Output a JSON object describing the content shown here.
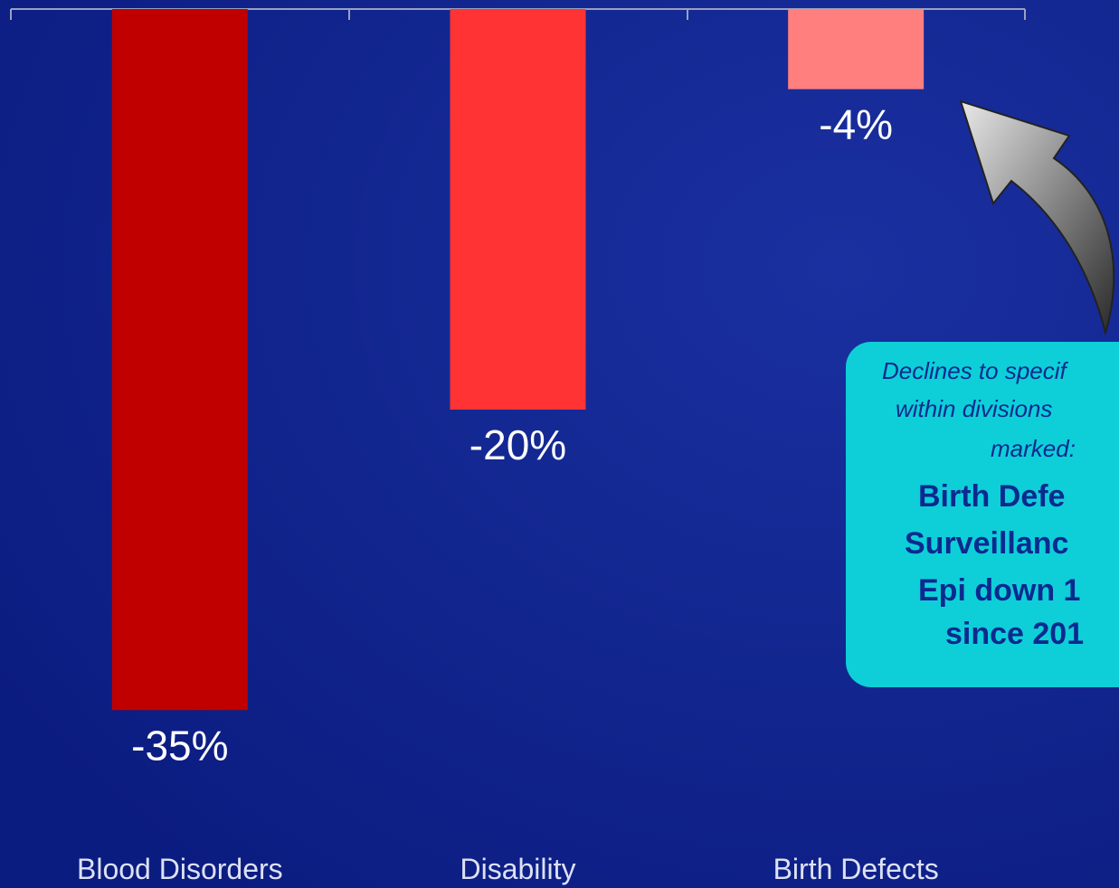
{
  "chart_data": {
    "type": "bar",
    "categories": [
      "Blood Disorders",
      "Disability",
      "Birth Defects"
    ],
    "values": [
      -35,
      -20,
      -4
    ],
    "value_labels": [
      "-35%",
      "-20%",
      "-4%"
    ],
    "colors": [
      "#c00000",
      "#ff3333",
      "#ff7f7f"
    ],
    "ylim": [
      -40,
      0
    ],
    "annotation": {
      "italic_lines": [
        "Declines to specif",
        "within divisions",
        "marked:"
      ],
      "bold_lines": [
        "Birth Defe",
        "Surveillanc",
        "Epi down 1",
        "since 201"
      ]
    }
  }
}
